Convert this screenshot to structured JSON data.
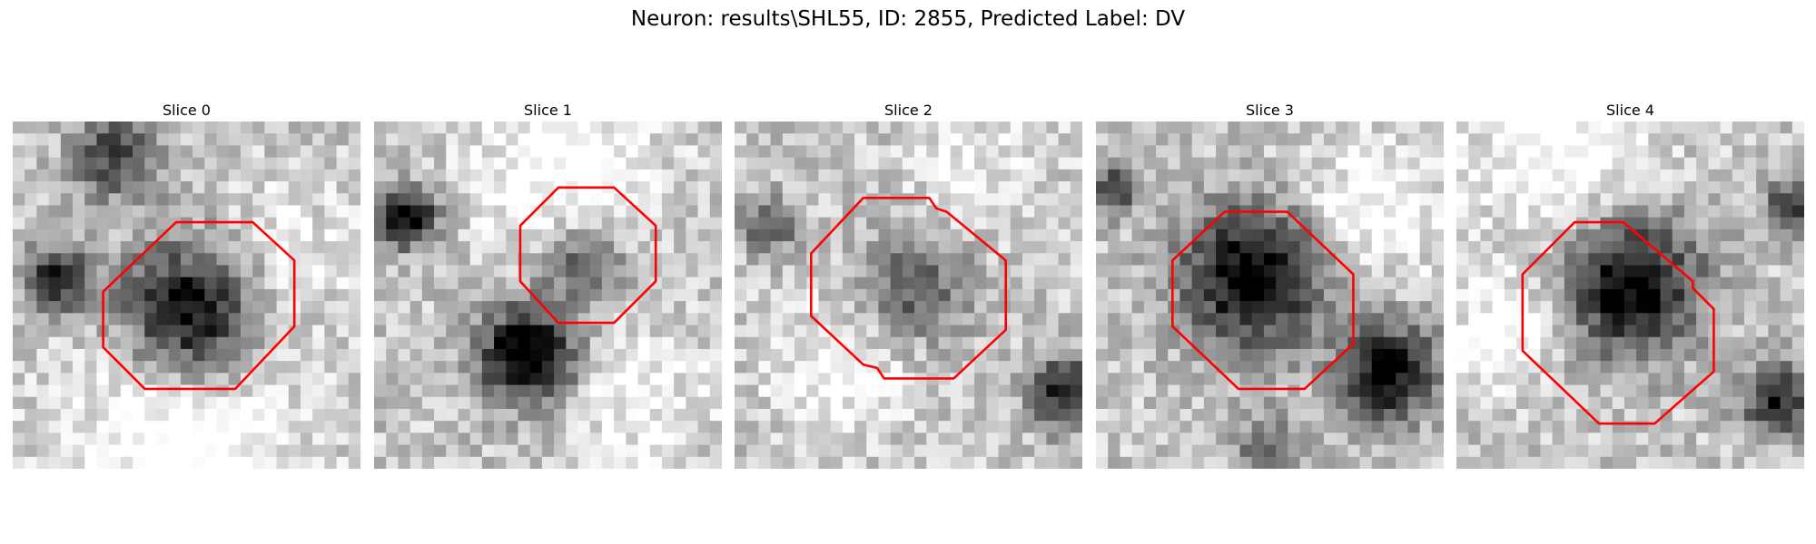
{
  "figure": {
    "title": "Neuron: results\\SHL55, ID: 2855, Predicted Label: DV",
    "contour_color": "#ff0000",
    "slices": [
      {
        "title": "Slice 0",
        "image": "grayscale microscopy patch with dark cell body",
        "seed": 11,
        "blobs": [
          [
            0.52,
            0.55,
            0.2,
            0.85
          ],
          [
            0.13,
            0.45,
            0.09,
            0.75
          ],
          [
            0.3,
            0.1,
            0.12,
            0.55
          ]
        ],
        "brights": [
          [
            0.5,
            0.9,
            0.3,
            0.35
          ],
          [
            0.75,
            0.4,
            0.2,
            0.2
          ]
        ],
        "contour": [
          [
            0.47,
            0.29
          ],
          [
            0.69,
            0.29
          ],
          [
            0.81,
            0.4
          ],
          [
            0.81,
            0.59
          ],
          [
            0.64,
            0.77
          ],
          [
            0.38,
            0.77
          ],
          [
            0.26,
            0.65
          ],
          [
            0.26,
            0.49
          ]
        ]
      },
      {
        "title": "Slice 1",
        "image": "grayscale microscopy patch with dark cell body",
        "seed": 23,
        "blobs": [
          [
            0.44,
            0.67,
            0.14,
            0.9
          ],
          [
            0.1,
            0.28,
            0.08,
            0.85
          ],
          [
            0.6,
            0.4,
            0.12,
            0.45
          ]
        ],
        "brights": [
          [
            0.55,
            0.15,
            0.25,
            0.3
          ],
          [
            0.75,
            0.8,
            0.2,
            0.2
          ]
        ],
        "contour": [
          [
            0.53,
            0.19
          ],
          [
            0.69,
            0.19
          ],
          [
            0.81,
            0.3
          ],
          [
            0.81,
            0.46
          ],
          [
            0.69,
            0.58
          ],
          [
            0.53,
            0.58
          ],
          [
            0.42,
            0.46
          ],
          [
            0.42,
            0.3
          ]
        ]
      },
      {
        "title": "Slice 2",
        "image": "grayscale microscopy patch with dark cell body",
        "seed": 37,
        "blobs": [
          [
            0.52,
            0.47,
            0.16,
            0.45
          ],
          [
            0.95,
            0.78,
            0.1,
            0.7
          ],
          [
            0.1,
            0.3,
            0.08,
            0.45
          ]
        ],
        "brights": [
          [
            0.3,
            0.7,
            0.2,
            0.2
          ],
          [
            0.7,
            0.15,
            0.2,
            0.15
          ]
        ],
        "contour": [
          [
            0.37,
            0.22
          ],
          [
            0.56,
            0.22
          ],
          [
            0.58,
            0.25
          ],
          [
            0.61,
            0.26
          ],
          [
            0.78,
            0.4
          ],
          [
            0.78,
            0.6
          ],
          [
            0.63,
            0.74
          ],
          [
            0.43,
            0.74
          ],
          [
            0.41,
            0.71
          ],
          [
            0.37,
            0.7
          ],
          [
            0.22,
            0.56
          ],
          [
            0.22,
            0.38
          ]
        ]
      },
      {
        "title": "Slice 3",
        "image": "grayscale microscopy patch with dark cell body",
        "seed": 53,
        "blobs": [
          [
            0.45,
            0.45,
            0.2,
            0.85
          ],
          [
            0.84,
            0.72,
            0.14,
            0.8
          ],
          [
            0.05,
            0.2,
            0.07,
            0.6
          ],
          [
            0.5,
            0.95,
            0.1,
            0.4
          ]
        ],
        "brights": [
          [
            0.8,
            0.25,
            0.2,
            0.25
          ]
        ],
        "contour": [
          [
            0.37,
            0.26
          ],
          [
            0.55,
            0.26
          ],
          [
            0.74,
            0.44
          ],
          [
            0.74,
            0.64
          ],
          [
            0.6,
            0.77
          ],
          [
            0.41,
            0.77
          ],
          [
            0.22,
            0.59
          ],
          [
            0.22,
            0.4
          ]
        ]
      },
      {
        "title": "Slice 4",
        "image": "grayscale microscopy patch with dark cell body",
        "seed": 71,
        "blobs": [
          [
            0.5,
            0.47,
            0.2,
            0.8
          ],
          [
            0.92,
            0.8,
            0.1,
            0.7
          ],
          [
            0.96,
            0.25,
            0.08,
            0.5
          ]
        ],
        "brights": [
          [
            0.15,
            0.6,
            0.15,
            0.3
          ],
          [
            0.3,
            0.1,
            0.25,
            0.3
          ]
        ],
        "contour": [
          [
            0.34,
            0.29
          ],
          [
            0.48,
            0.29
          ],
          [
            0.68,
            0.46
          ],
          [
            0.68,
            0.48
          ],
          [
            0.74,
            0.54
          ],
          [
            0.74,
            0.72
          ],
          [
            0.57,
            0.87
          ],
          [
            0.41,
            0.87
          ],
          [
            0.19,
            0.66
          ],
          [
            0.19,
            0.44
          ]
        ]
      }
    ]
  }
}
